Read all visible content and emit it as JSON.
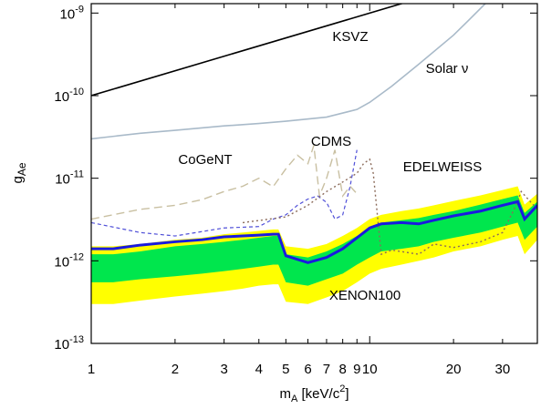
{
  "chart_data": {
    "type": "line",
    "x_scale": "log",
    "y_scale": "log",
    "xlim": [
      1,
      40
    ],
    "ylim": [
      1e-13,
      1.3e-09
    ],
    "xticks": [
      1,
      2,
      3,
      4,
      5,
      6,
      7,
      8,
      9,
      10,
      20,
      30
    ],
    "yticks": [
      {
        "value": 1e-13,
        "label": "10",
        "sup": "-13"
      },
      {
        "value": 1e-12,
        "label": "10",
        "sup": "-12"
      },
      {
        "value": 1e-11,
        "label": "10",
        "sup": "-11"
      },
      {
        "value": 1e-10,
        "label": "10",
        "sup": "-10"
      },
      {
        "value": 1e-09,
        "label": "10",
        "sup": "-9"
      }
    ],
    "x_label": {
      "text": "m",
      "sub": "A",
      "rest": " [keV/c",
      "sup": "2",
      "end": "]"
    },
    "y_label": {
      "text": "g",
      "sub": "Ae"
    },
    "x": [
      1,
      1.2,
      1.5,
      2,
      2.5,
      3,
      3.5,
      4,
      4.5,
      4.7,
      5,
      6,
      7,
      8,
      9,
      10,
      11,
      13,
      15,
      17,
      20,
      25,
      30,
      34,
      36,
      40
    ],
    "bands": [
      {
        "color": "#ffff00",
        "upper": [
          1.5e-12,
          1.5e-12,
          1.6e-12,
          1.8e-12,
          1.9e-12,
          2.1e-12,
          2.2e-12,
          2.3e-12,
          2.4e-12,
          2.4e-12,
          1.5e-12,
          1.4e-12,
          1.6e-12,
          2e-12,
          2.5e-12,
          3.2e-12,
          3.6e-12,
          4e-12,
          4.3e-12,
          4.7e-12,
          5.3e-12,
          6.2e-12,
          7.2e-12,
          8e-12,
          4.8e-12,
          6.5e-12
        ],
        "lower": [
          3e-13,
          3e-13,
          3.3e-13,
          3.7e-13,
          4e-13,
          4.3e-13,
          4.6e-13,
          5e-13,
          5.2e-13,
          5.2e-13,
          3.2e-13,
          3e-13,
          3.6e-13,
          4.3e-13,
          5.5e-13,
          7e-13,
          8e-13,
          9e-13,
          1e-12,
          1.1e-12,
          1.3e-12,
          1.5e-12,
          1.8e-12,
          2e-12,
          1.2e-12,
          1.8e-12
        ]
      },
      {
        "color": "#00e64d",
        "upper": [
          1.2e-12,
          1.2e-12,
          1.3e-12,
          1.5e-12,
          1.6e-12,
          1.7e-12,
          1.8e-12,
          1.9e-12,
          2e-12,
          2e-12,
          1.2e-12,
          1.1e-12,
          1.3e-12,
          1.6e-12,
          2e-12,
          2.5e-12,
          2.9e-12,
          3.1e-12,
          3.3e-12,
          3.6e-12,
          4e-12,
          4.8e-12,
          5.6e-12,
          6.2e-12,
          3.8e-12,
          5.2e-12
        ],
        "lower": [
          5.5e-13,
          5.5e-13,
          6e-13,
          6.5e-13,
          7e-13,
          7.5e-13,
          8e-13,
          8.5e-13,
          9e-13,
          9e-13,
          5.5e-13,
          5e-13,
          6e-13,
          7e-13,
          9e-13,
          1.1e-12,
          1.3e-12,
          1.4e-12,
          1.5e-12,
          1.7e-12,
          1.9e-12,
          2.2e-12,
          2.6e-12,
          2.9e-12,
          1.8e-12,
          2.6e-12
        ]
      }
    ],
    "series": [
      {
        "name": "KSVZ",
        "color": "#000000",
        "width": 1.6,
        "dash": "none",
        "x": [
          1,
          40
        ],
        "values": [
          1e-10,
          4e-09
        ]
      },
      {
        "name": "Solar ν",
        "color": "#a9bac9",
        "width": 1.6,
        "dash": "none",
        "x": [
          1,
          1.5,
          2,
          3,
          4,
          5,
          7,
          9,
          10,
          12,
          15,
          20,
          23,
          26
        ],
        "values": [
          3e-11,
          3.5e-11,
          3.8e-11,
          4.3e-11,
          4.6e-11,
          4.9e-11,
          5.5e-11,
          6.8e-11,
          8.3e-11,
          1.3e-10,
          2.4e-10,
          5.4e-10,
          8.6e-10,
          1.3e-09
        ]
      },
      {
        "name": "CoGeNT",
        "color": "#c9c0a2",
        "width": 1.4,
        "dash": "9 5",
        "x": [
          1,
          1.5,
          2,
          2.5,
          3,
          3.5,
          4,
          4.5,
          5,
          5.5,
          6,
          6.3,
          6.6,
          7,
          7.5,
          8,
          8.5,
          9
        ],
        "values": [
          3.2e-12,
          4.2e-12,
          4.7e-12,
          5.5e-12,
          6.9e-12,
          8e-12,
          1e-11,
          7.9e-12,
          1.3e-11,
          1.9e-11,
          1.5e-11,
          2.5e-11,
          6.1e-12,
          1e-11,
          2.2e-11,
          6.1e-12,
          8e-12,
          6.5e-12
        ]
      },
      {
        "name": "CDMS",
        "color": "#5050d8",
        "width": 1.2,
        "dash": "4 3",
        "x": [
          1,
          1.5,
          2,
          3,
          4,
          4.5,
          5,
          5.5,
          6,
          6.5,
          7,
          7.5,
          8,
          8.5,
          9
        ],
        "values": [
          2.9e-12,
          2.2e-12,
          2e-12,
          2.5e-12,
          2.6e-12,
          3.2e-12,
          3.6e-12,
          4.7e-12,
          5.6e-12,
          6.1e-12,
          5.1e-12,
          3.2e-12,
          3.6e-12,
          7.9e-12,
          2.2e-11
        ]
      },
      {
        "name": "EDELWEISS",
        "color": "#8b6b5a",
        "width": 1.4,
        "dash": "2 3",
        "x": [
          3.5,
          5,
          6,
          7,
          8,
          9,
          9.5,
          10,
          10.3,
          11,
          12,
          15,
          17,
          20,
          25,
          30,
          33,
          35,
          40
        ],
        "values": [
          2.9e-12,
          3.4e-12,
          4.7e-12,
          6.9e-12,
          9e-12,
          1.15e-11,
          1.5e-11,
          1.7e-11,
          1.15e-11,
          1.2e-12,
          1.35e-12,
          1.2e-12,
          1.6e-12,
          1.45e-12,
          1.7e-12,
          2.2e-12,
          4.2e-12,
          6.9e-12,
          4.2e-12
        ]
      },
      {
        "name": "XENON100",
        "color": "#1a1ae0",
        "width": 3,
        "dash": "none",
        "values": [
          1.4e-12,
          1.4e-12,
          1.55e-12,
          1.7e-12,
          1.8e-12,
          1.95e-12,
          2e-12,
          2.05e-12,
          2.1e-12,
          2.1e-12,
          1.15e-12,
          9.5e-13,
          1.1e-12,
          1.4e-12,
          1.9e-12,
          2.5e-12,
          2.8e-12,
          2.9e-12,
          2.8e-12,
          3.1e-12,
          3.5e-12,
          4e-12,
          4.7e-12,
          5.2e-12,
          3.2e-12,
          4.7e-12
        ]
      }
    ]
  }
}
